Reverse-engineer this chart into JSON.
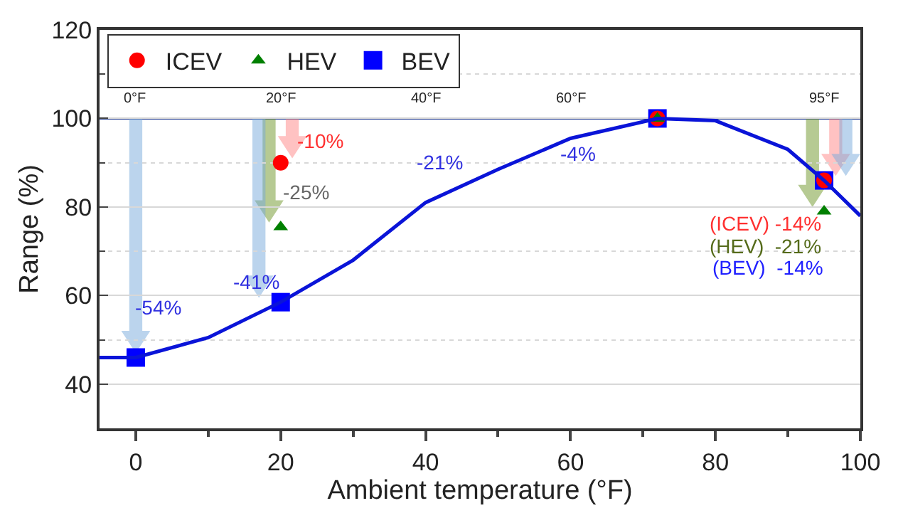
{
  "chart_data": {
    "type": "scatter",
    "xlabel": "Ambient temperature (°F)",
    "ylabel": "Range (%)",
    "xlim": [
      -5,
      100
    ],
    "xticks": [
      0,
      20,
      40,
      60,
      80,
      100
    ],
    "ylim": [
      30,
      120
    ],
    "yticks": [
      40,
      60,
      80,
      100,
      120
    ],
    "grid": "y",
    "legend": "top left",
    "series": [
      {
        "type": "line",
        "color": "#0a14d8",
        "x": [
          -5,
          0,
          10,
          20,
          30,
          40,
          50,
          60,
          72,
          80,
          90,
          95,
          100
        ],
        "values": [
          46,
          46,
          50.5,
          58.5,
          68,
          81,
          88.5,
          95.5,
          100,
          99.5,
          93,
          86,
          78
        ]
      },
      {
        "name": "ICEV",
        "color": "#ff0000",
        "marker": "circle",
        "x": [
          20,
          72,
          95
        ],
        "values": [
          90,
          100,
          86
        ]
      },
      {
        "name": "HEV",
        "color": "#008000",
        "marker": "triangle",
        "x": [
          20,
          72,
          95
        ],
        "values": [
          75.5,
          100,
          79
        ]
      },
      {
        "name": "BEV",
        "color": "#0000ff",
        "marker": "square",
        "x": [
          0,
          20,
          72,
          95
        ],
        "values": [
          46,
          58.5,
          100,
          86
        ]
      }
    ],
    "ref_lines": [
      {
        "axis": "y",
        "value": 100,
        "color": "#1f3a93"
      }
    ],
    "annotations": [
      {
        "text": "0°F",
        "x": 0,
        "y": 100
      },
      {
        "text": "20°F",
        "x": 20,
        "y": 100
      },
      {
        "text": "40°F",
        "x": 40,
        "y": 100
      },
      {
        "text": "60°F",
        "x": 60,
        "y": 100
      },
      {
        "text": "95°F",
        "x": 95,
        "y": 100
      },
      {
        "text": "-10%",
        "x": 20,
        "y": 90
      },
      {
        "text": "-25%",
        "x": 20,
        "y": 75.5
      },
      {
        "text": "-41%",
        "x": 20,
        "y": 58.5
      },
      {
        "text": "-54%",
        "x": 0,
        "y": 46
      },
      {
        "text": "-21%",
        "x": 40,
        "y": 81
      },
      {
        "text": "-4%",
        "x": 60,
        "y": 95.5
      },
      {
        "text": "(ICEV) -14%",
        "x": 95,
        "y": 86
      },
      {
        "text": "(HEV)  -21%",
        "x": 95,
        "y": 79
      },
      "(BEV)  -14%"
    ]
  }
}
